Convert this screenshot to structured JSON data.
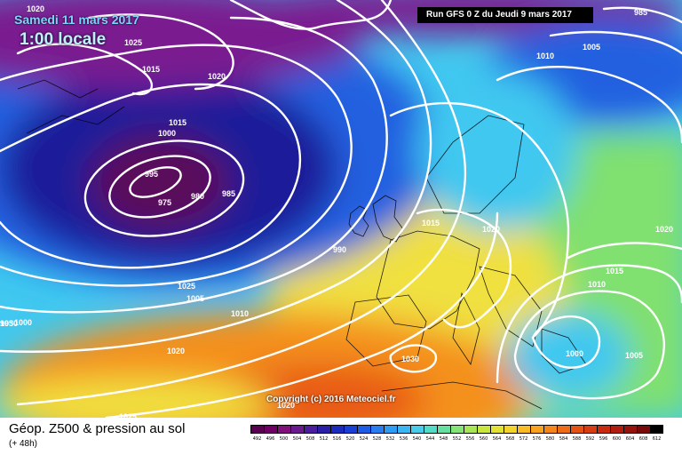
{
  "header": {
    "date": "Samedi 11 mars 2017",
    "time": "1:00 locale",
    "run": "Run GFS 0 Z du Jeudi 9 mars 2017"
  },
  "copyright": "Copyright (c) 2016 Meteociel.fr",
  "footer": {
    "title": "Géop. Z500 & pression au sol",
    "subtitle": "(+ 48h)"
  },
  "isobar_labels": [
    "1020",
    "1025",
    "1015",
    "1020",
    "1015",
    "1000",
    "995",
    "975",
    "980",
    "985",
    "990",
    "1015",
    "1020",
    "1025",
    "1005",
    "1010",
    "1020",
    "1025",
    "1030",
    "1020",
    "1030",
    "1010",
    "1005",
    "985",
    "1020",
    "1015",
    "1010",
    "1000",
    "1005",
    "995",
    "1000"
  ],
  "scale": {
    "labels": [
      "492",
      "496",
      "500",
      "504",
      "508",
      "512",
      "516",
      "520",
      "524",
      "528",
      "532",
      "536",
      "540",
      "544",
      "548",
      "552",
      "556",
      "560",
      "564",
      "568",
      "572",
      "576",
      "580",
      "584",
      "588",
      "592",
      "596",
      "600",
      "604",
      "608",
      "612"
    ],
    "colors": [
      "#5a0050",
      "#6e0064",
      "#80107a",
      "#6a1a8e",
      "#4b1d9c",
      "#2a1ea8",
      "#1c2bbd",
      "#1a3fd4",
      "#1f5ce6",
      "#2a7df0",
      "#2f9cf4",
      "#3cb6f2",
      "#48ccea",
      "#54dbc8",
      "#66e0a0",
      "#84e478",
      "#a8e656",
      "#c8e63e",
      "#e2e234",
      "#f2d42c",
      "#f8bc26",
      "#f8a220",
      "#f4861c",
      "#ee6c18",
      "#e45214",
      "#d83c12",
      "#c82a10",
      "#b01c0e",
      "#96120c",
      "#780a0a",
      "#000000"
    ]
  },
  "map_colors": {
    "deep_low": "#5a0a5a",
    "dark_blue": "#1a1a9a",
    "blue": "#2060e0",
    "cyan": "#40c8f0",
    "green": "#80e070",
    "yellow": "#f0e040",
    "orange": "#f4901c",
    "red_orange": "#e85a18",
    "violet": "#7a1a90"
  }
}
